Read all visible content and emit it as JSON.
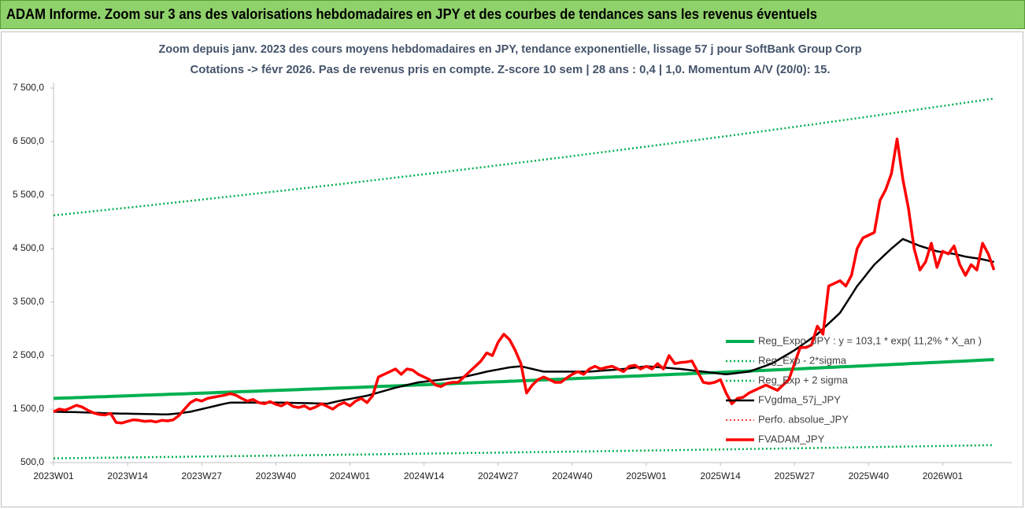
{
  "header": {
    "title": "ADAM Informe. Zoom sur 3 ans des valorisations hebdomadaires en JPY et des courbes de tendances sans les revenus éventuels"
  },
  "chart_data": {
    "type": "line",
    "title": "Zoom depuis janv. 2023 des cours moyens hebdomadaires en JPY, tendance exponentielle, lissage 57 j pour SoftBank Group Corp",
    "subtitle": "Cotations -> févr 2026. Pas de revenus pris en compte. Z-score 10 sem | 28 ans : 0,4 | 1,0. Momentum A/V (20/0): 15.",
    "categories": [
      "2023W01",
      null,
      null,
      null,
      null,
      null,
      null,
      null,
      null,
      null,
      null,
      null,
      null,
      "2023W14",
      null,
      null,
      null,
      null,
      null,
      null,
      null,
      null,
      null,
      null,
      null,
      null,
      "2023W27",
      null,
      null,
      null,
      null,
      null,
      null,
      null,
      null,
      null,
      null,
      null,
      null,
      "2023W40",
      null,
      null,
      null,
      null,
      null,
      null,
      null,
      null,
      null,
      null,
      null,
      null,
      "2024W01",
      null,
      null,
      null,
      null,
      null,
      null,
      null,
      null,
      null,
      null,
      null,
      null,
      "2024W14",
      null,
      null,
      null,
      null,
      null,
      null,
      null,
      null,
      null,
      null,
      null,
      null,
      "2024W27",
      null,
      null,
      null,
      null,
      null,
      null,
      null,
      null,
      null,
      null,
      null,
      null,
      "2024W40",
      null,
      null,
      null,
      null,
      null,
      null,
      null,
      null,
      null,
      null,
      null,
      null,
      "2025W01",
      null,
      null,
      null,
      null,
      null,
      null,
      null,
      null,
      null,
      null,
      null,
      null,
      "2025W14",
      null,
      null,
      null,
      null,
      null,
      null,
      null,
      null,
      null,
      null,
      null,
      null,
      "2025W27",
      null,
      null,
      null,
      null,
      null,
      null,
      null,
      null,
      null,
      null,
      null,
      null,
      "2025W40",
      null,
      null,
      null,
      null,
      null,
      null,
      null,
      null,
      null,
      null,
      null,
      null,
      "2026W01",
      null,
      null,
      null,
      null,
      null,
      null,
      null,
      null,
      null
    ],
    "ylim": [
      500,
      7500
    ],
    "yticks": [
      {
        "value": 500,
        "label": "500,0"
      },
      {
        "value": 1500,
        "label": "1 500,0"
      },
      {
        "value": 2500,
        "label": "2 500,0"
      },
      {
        "value": 3500,
        "label": "3 500,0"
      },
      {
        "value": 4500,
        "label": "4 500,0"
      },
      {
        "value": 5500,
        "label": "5 500,0"
      },
      {
        "value": 6500,
        "label": "6 500,0"
      },
      {
        "value": 7500,
        "label": "7 500,0"
      }
    ],
    "grid": false,
    "legend": "right",
    "series": [
      {
        "name": "Reg_Expo_JPY : y = 103,1 * exp( 11,2% *  X_an )",
        "color": "#00b050",
        "dash": "solid",
        "width": 4,
        "values": [
          1700,
          1704,
          1707,
          1711,
          1715,
          1718,
          1722,
          1726,
          1730,
          1733,
          1737,
          1741,
          1744,
          1748,
          1752,
          1756,
          1760,
          1763,
          1767,
          1771,
          1775,
          1779,
          1783,
          1786,
          1790,
          1794,
          1798,
          1802,
          1806,
          1810,
          1814,
          1818,
          1822,
          1826,
          1830,
          1833,
          1837,
          1841,
          1845,
          1849,
          1853,
          1857,
          1861,
          1865,
          1869,
          1873,
          1877,
          1881,
          1885,
          1889,
          1893,
          1897,
          1901,
          1905,
          1909,
          1913,
          1918,
          1922,
          1926,
          1930,
          1934,
          1938,
          1943,
          1947,
          1951,
          1955,
          1959,
          1964,
          1968,
          1972,
          1977,
          1981,
          1985,
          1990,
          1994,
          1998,
          2003,
          2007,
          2011,
          2015,
          2020,
          2024,
          2029,
          2033,
          2037,
          2042,
          2046,
          2051,
          2055,
          2059,
          2064,
          2068,
          2073,
          2077,
          2082,
          2086,
          2091,
          2095,
          2100,
          2104,
          2109,
          2113,
          2118,
          2122,
          2127,
          2132,
          2136,
          2141,
          2145,
          2150,
          2155,
          2159,
          2164,
          2169,
          2173,
          2178,
          2182,
          2187,
          2192,
          2197,
          2201,
          2206,
          2211,
          2216,
          2221,
          2225,
          2230,
          2235,
          2240,
          2244,
          2249,
          2254,
          2259,
          2264,
          2269,
          2274,
          2279,
          2284,
          2289,
          2294,
          2298,
          2303,
          2308,
          2313,
          2318,
          2323,
          2328,
          2333,
          2338,
          2343,
          2349,
          2354,
          2359,
          2364,
          2369,
          2374,
          2379,
          2384,
          2389,
          2394,
          2399,
          2405,
          2410,
          2415,
          2420,
          2425
        ]
      },
      {
        "name": "Reg_Exp - 2*sigma",
        "color": "#00b050",
        "dash": "dotted",
        "width": 2.5,
        "values": [
          580,
          581,
          583,
          584,
          585,
          586,
          587,
          588,
          590,
          591,
          592,
          593,
          595,
          596,
          597,
          599,
          600,
          601,
          603,
          604,
          605,
          606,
          608,
          609,
          610,
          612,
          613,
          614,
          616,
          617,
          618,
          620,
          621,
          622,
          624,
          625,
          626,
          628,
          629,
          630,
          631,
          633,
          634,
          636,
          637,
          638,
          640,
          641,
          643,
          644,
          645,
          647,
          648,
          649,
          651,
          652,
          654,
          655,
          657,
          658,
          660,
          661,
          663,
          664,
          666,
          667,
          668,
          670,
          671,
          673,
          674,
          676,
          677,
          679,
          680,
          682,
          683,
          685,
          686,
          687,
          689,
          690,
          692,
          693,
          695,
          696,
          698,
          699,
          701,
          702,
          704,
          705,
          707,
          708,
          710,
          711,
          713,
          714,
          716,
          717,
          719,
          720,
          722,
          723,
          725,
          727,
          728,
          730,
          731,
          733,
          735,
          736,
          738,
          739,
          741,
          743,
          744,
          746,
          748,
          749,
          751,
          752,
          754,
          756,
          757,
          759,
          760,
          762,
          764,
          765,
          767,
          769,
          770,
          772,
          774,
          775,
          777,
          779,
          780,
          782,
          784,
          786,
          787,
          789,
          791,
          792,
          794,
          796,
          797,
          799,
          801,
          802,
          804,
          806,
          808,
          809,
          811,
          813,
          814,
          816,
          818,
          820,
          821,
          823,
          825,
          827
        ]
      },
      {
        "name": "Reg_Exp + 2 sigma",
        "color": "#00b050",
        "dash": "dotted",
        "width": 2.5,
        "values": [
          5120,
          5131,
          5142,
          5154,
          5165,
          5176,
          5187,
          5198,
          5210,
          5221,
          5232,
          5243,
          5254,
          5265,
          5277,
          5288,
          5300,
          5311,
          5323,
          5335,
          5346,
          5358,
          5369,
          5381,
          5393,
          5404,
          5416,
          5428,
          5440,
          5451,
          5463,
          5475,
          5487,
          5499,
          5510,
          5522,
          5534,
          5546,
          5557,
          5569,
          5581,
          5593,
          5605,
          5617,
          5629,
          5641,
          5654,
          5666,
          5678,
          5690,
          5702,
          5714,
          5726,
          5738,
          5751,
          5763,
          5776,
          5788,
          5801,
          5813,
          5826,
          5838,
          5851,
          5863,
          5876,
          5888,
          5901,
          5914,
          5927,
          5940,
          5953,
          5966,
          5979,
          5992,
          6005,
          6018,
          6031,
          6044,
          6057,
          6070,
          6083,
          6097,
          6110,
          6123,
          6136,
          6149,
          6163,
          6176,
          6189,
          6202,
          6215,
          6229,
          6243,
          6256,
          6270,
          6284,
          6297,
          6311,
          6325,
          6338,
          6352,
          6366,
          6380,
          6393,
          6407,
          6421,
          6435,
          6448,
          6462,
          6476,
          6490,
          6504,
          6517,
          6531,
          6545,
          6559,
          6573,
          6587,
          6601,
          6616,
          6630,
          6645,
          6659,
          6673,
          6688,
          6702,
          6717,
          6731,
          6745,
          6760,
          6774,
          6789,
          6804,
          6818,
          6833,
          6848,
          6863,
          6878,
          6892,
          6907,
          6922,
          6937,
          6952,
          6967,
          6982,
          6998,
          7013,
          7028,
          7044,
          7059,
          7074,
          7089,
          7105,
          7120,
          7135,
          7151,
          7166,
          7181,
          7197,
          7212,
          7228,
          7243,
          7258,
          7274,
          7289,
          7304
        ]
      },
      {
        "name": "FVgdma_57j_JPY",
        "color": "#000000",
        "dash": "solid",
        "width": 2.5,
        "values": [
          1450,
          1448,
          1446,
          1444,
          1442,
          1440,
          1436,
          1432,
          1428,
          1424,
          1420,
          1418,
          1416,
          1414,
          1412,
          1410,
          1408,
          1406,
          1404,
          1402,
          1400,
          1410,
          1420,
          1435,
          1450,
          1475,
          1500,
          1525,
          1550,
          1575,
          1600,
          1620,
          1620,
          1620,
          1620,
          1620,
          1620,
          1620,
          1620,
          1620,
          1620,
          1618,
          1616,
          1614,
          1612,
          1610,
          1608,
          1605,
          1600,
          1625,
          1650,
          1670,
          1690,
          1710,
          1730,
          1750,
          1780,
          1810,
          1840,
          1870,
          1900,
          1925,
          1950,
          1975,
          2000,
          2012,
          2025,
          2037,
          2050,
          2062,
          2075,
          2087,
          2100,
          2125,
          2150,
          2175,
          2200,
          2220,
          2240,
          2260,
          2280,
          2290,
          2300,
          2275,
          2250,
          2225,
          2200,
          2200,
          2200,
          2200,
          2200,
          2200,
          2200,
          2200,
          2200,
          2208,
          2216,
          2225,
          2233,
          2241,
          2250,
          2262,
          2275,
          2287,
          2300,
          2292,
          2283,
          2275,
          2267,
          2258,
          2250,
          2237,
          2225,
          2212,
          2200,
          2188,
          2175,
          2162,
          2150,
          2162,
          2175,
          2187,
          2200,
          2237,
          2275,
          2312,
          2350,
          2412,
          2475,
          2537,
          2600,
          2675,
          2750,
          2825,
          2900,
          3000,
          3100,
          3200,
          3300,
          3467,
          3633,
          3800,
          3933,
          4067,
          4200,
          4300,
          4400,
          4500,
          4590,
          4680,
          4637,
          4593,
          4550,
          4517,
          4483,
          4450,
          4433,
          4417,
          4400,
          4375,
          4350,
          4333,
          4317,
          4300,
          4275,
          4250
        ]
      },
      {
        "name": "Perfo. absolue_JPY",
        "color": "#ff0000",
        "dash": "dotted",
        "width": 1.5,
        "values": [
          1450,
          1500,
          1480,
          1520,
          1570,
          1540,
          1480,
          1430,
          1400,
          1390,
          1420,
          1250,
          1240,
          1270,
          1300,
          1290,
          1270,
          1280,
          1260,
          1290,
          1280,
          1300,
          1380,
          1500,
          1620,
          1680,
          1650,
          1700,
          1720,
          1740,
          1760,
          1790,
          1760,
          1700,
          1650,
          1680,
          1620,
          1600,
          1640,
          1590,
          1560,
          1620,
          1550,
          1530,
          1560,
          1500,
          1540,
          1600,
          1550,
          1500,
          1580,
          1620,
          1560,
          1650,
          1700,
          1620,
          1750,
          2100,
          2150,
          2200,
          2250,
          2150,
          2250,
          2230,
          2150,
          2100,
          2050,
          1950,
          1920,
          1980,
          2000,
          2000,
          2100,
          2200,
          2300,
          2400,
          2550,
          2500,
          2750,
          2900,
          2800,
          2600,
          2350,
          1800,
          1950,
          2050,
          2100,
          2050,
          2000,
          2000,
          2080,
          2150,
          2200,
          2150,
          2250,
          2300,
          2250,
          2280,
          2300,
          2250,
          2200,
          2300,
          2320,
          2250,
          2300,
          2250,
          2350,
          2250,
          2500,
          2350,
          2370,
          2380,
          2400,
          2200,
          2000,
          1980,
          2000,
          2050,
          1800,
          1600,
          1700,
          1720,
          1800,
          1850,
          1900,
          1950,
          1900,
          1850,
          1950,
          2050,
          2350,
          2650,
          2650,
          2700,
          3050,
          2900,
          3800,
          3850,
          3900,
          3800,
          4000,
          4500,
          4700,
          4750,
          4800,
          5400,
          5600,
          5900,
          6550,
          5800,
          5250,
          4500,
          4100,
          4250,
          4600,
          4150,
          4450,
          4400,
          4550,
          4200,
          4000,
          4200,
          4100,
          4600,
          4400,
          4100
        ]
      },
      {
        "name": "FVADAM_JPY",
        "color": "#ff0000",
        "dash": "solid",
        "width": 3.5,
        "values": [
          1450,
          1500,
          1480,
          1520,
          1570,
          1540,
          1480,
          1430,
          1400,
          1390,
          1420,
          1250,
          1240,
          1270,
          1300,
          1290,
          1270,
          1280,
          1260,
          1290,
          1280,
          1300,
          1380,
          1500,
          1620,
          1680,
          1650,
          1700,
          1720,
          1740,
          1760,
          1790,
          1760,
          1700,
          1650,
          1680,
          1620,
          1600,
          1640,
          1590,
          1560,
          1620,
          1550,
          1530,
          1560,
          1500,
          1540,
          1600,
          1550,
          1500,
          1580,
          1620,
          1560,
          1650,
          1700,
          1620,
          1750,
          2100,
          2150,
          2200,
          2250,
          2150,
          2250,
          2230,
          2150,
          2100,
          2050,
          1950,
          1920,
          1980,
          2000,
          2000,
          2100,
          2200,
          2300,
          2400,
          2550,
          2500,
          2750,
          2900,
          2800,
          2600,
          2350,
          1800,
          1950,
          2050,
          2100,
          2050,
          2000,
          2000,
          2080,
          2150,
          2200,
          2150,
          2250,
          2300,
          2250,
          2280,
          2300,
          2250,
          2200,
          2300,
          2320,
          2250,
          2300,
          2250,
          2350,
          2250,
          2500,
          2350,
          2370,
          2380,
          2400,
          2200,
          2000,
          1980,
          2000,
          2050,
          1800,
          1600,
          1700,
          1720,
          1800,
          1850,
          1900,
          1950,
          1900,
          1850,
          1950,
          2050,
          2350,
          2650,
          2650,
          2700,
          3050,
          2900,
          3800,
          3850,
          3900,
          3800,
          4000,
          4500,
          4700,
          4750,
          4800,
          5400,
          5600,
          5900,
          6550,
          5800,
          5250,
          4500,
          4100,
          4250,
          4600,
          4150,
          4450,
          4400,
          4550,
          4200,
          4000,
          4200,
          4100,
          4600,
          4400,
          4100
        ]
      }
    ]
  }
}
